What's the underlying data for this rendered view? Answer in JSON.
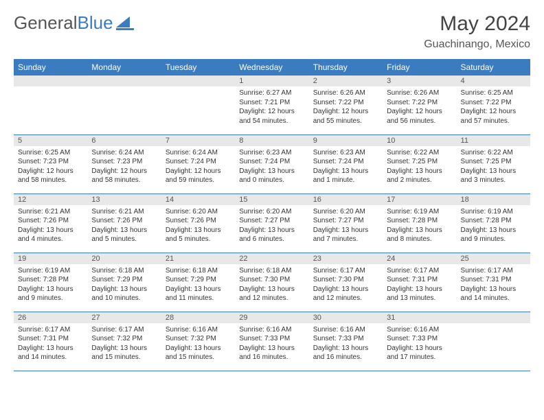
{
  "logo": {
    "text1": "General",
    "text2": "Blue"
  },
  "title": "May 2024",
  "location": "Guachinango, Mexico",
  "columns": [
    "Sunday",
    "Monday",
    "Tuesday",
    "Wednesday",
    "Thursday",
    "Friday",
    "Saturday"
  ],
  "colors": {
    "header_bg": "#3b7bbf",
    "daynum_bg": "#e8e8e8",
    "rule": "#3b7bbf"
  },
  "weeks": [
    [
      null,
      null,
      null,
      {
        "n": "1",
        "sr": "6:27 AM",
        "ss": "7:21 PM",
        "dl": "12 hours and 54 minutes."
      },
      {
        "n": "2",
        "sr": "6:26 AM",
        "ss": "7:22 PM",
        "dl": "12 hours and 55 minutes."
      },
      {
        "n": "3",
        "sr": "6:26 AM",
        "ss": "7:22 PM",
        "dl": "12 hours and 56 minutes."
      },
      {
        "n": "4",
        "sr": "6:25 AM",
        "ss": "7:22 PM",
        "dl": "12 hours and 57 minutes."
      }
    ],
    [
      {
        "n": "5",
        "sr": "6:25 AM",
        "ss": "7:23 PM",
        "dl": "12 hours and 58 minutes."
      },
      {
        "n": "6",
        "sr": "6:24 AM",
        "ss": "7:23 PM",
        "dl": "12 hours and 58 minutes."
      },
      {
        "n": "7",
        "sr": "6:24 AM",
        "ss": "7:24 PM",
        "dl": "12 hours and 59 minutes."
      },
      {
        "n": "8",
        "sr": "6:23 AM",
        "ss": "7:24 PM",
        "dl": "13 hours and 0 minutes."
      },
      {
        "n": "9",
        "sr": "6:23 AM",
        "ss": "7:24 PM",
        "dl": "13 hours and 1 minute."
      },
      {
        "n": "10",
        "sr": "6:22 AM",
        "ss": "7:25 PM",
        "dl": "13 hours and 2 minutes."
      },
      {
        "n": "11",
        "sr": "6:22 AM",
        "ss": "7:25 PM",
        "dl": "13 hours and 3 minutes."
      }
    ],
    [
      {
        "n": "12",
        "sr": "6:21 AM",
        "ss": "7:26 PM",
        "dl": "13 hours and 4 minutes."
      },
      {
        "n": "13",
        "sr": "6:21 AM",
        "ss": "7:26 PM",
        "dl": "13 hours and 5 minutes."
      },
      {
        "n": "14",
        "sr": "6:20 AM",
        "ss": "7:26 PM",
        "dl": "13 hours and 5 minutes."
      },
      {
        "n": "15",
        "sr": "6:20 AM",
        "ss": "7:27 PM",
        "dl": "13 hours and 6 minutes."
      },
      {
        "n": "16",
        "sr": "6:20 AM",
        "ss": "7:27 PM",
        "dl": "13 hours and 7 minutes."
      },
      {
        "n": "17",
        "sr": "6:19 AM",
        "ss": "7:28 PM",
        "dl": "13 hours and 8 minutes."
      },
      {
        "n": "18",
        "sr": "6:19 AM",
        "ss": "7:28 PM",
        "dl": "13 hours and 9 minutes."
      }
    ],
    [
      {
        "n": "19",
        "sr": "6:19 AM",
        "ss": "7:28 PM",
        "dl": "13 hours and 9 minutes."
      },
      {
        "n": "20",
        "sr": "6:18 AM",
        "ss": "7:29 PM",
        "dl": "13 hours and 10 minutes."
      },
      {
        "n": "21",
        "sr": "6:18 AM",
        "ss": "7:29 PM",
        "dl": "13 hours and 11 minutes."
      },
      {
        "n": "22",
        "sr": "6:18 AM",
        "ss": "7:30 PM",
        "dl": "13 hours and 12 minutes."
      },
      {
        "n": "23",
        "sr": "6:17 AM",
        "ss": "7:30 PM",
        "dl": "13 hours and 12 minutes."
      },
      {
        "n": "24",
        "sr": "6:17 AM",
        "ss": "7:31 PM",
        "dl": "13 hours and 13 minutes."
      },
      {
        "n": "25",
        "sr": "6:17 AM",
        "ss": "7:31 PM",
        "dl": "13 hours and 14 minutes."
      }
    ],
    [
      {
        "n": "26",
        "sr": "6:17 AM",
        "ss": "7:31 PM",
        "dl": "13 hours and 14 minutes."
      },
      {
        "n": "27",
        "sr": "6:17 AM",
        "ss": "7:32 PM",
        "dl": "13 hours and 15 minutes."
      },
      {
        "n": "28",
        "sr": "6:16 AM",
        "ss": "7:32 PM",
        "dl": "13 hours and 15 minutes."
      },
      {
        "n": "29",
        "sr": "6:16 AM",
        "ss": "7:33 PM",
        "dl": "13 hours and 16 minutes."
      },
      {
        "n": "30",
        "sr": "6:16 AM",
        "ss": "7:33 PM",
        "dl": "13 hours and 16 minutes."
      },
      {
        "n": "31",
        "sr": "6:16 AM",
        "ss": "7:33 PM",
        "dl": "13 hours and 17 minutes."
      },
      null
    ]
  ],
  "labels": {
    "sunrise": "Sunrise: ",
    "sunset": "Sunset: ",
    "daylight": "Daylight: "
  }
}
